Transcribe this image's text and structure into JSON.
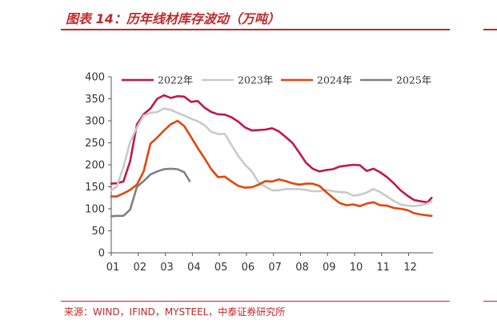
{
  "header": {
    "title": "图表 14：历年线材库存波动（万吨）"
  },
  "footer": {
    "source": "来源：WIND，IFIND，MYSTEEL，中泰证券研究所"
  },
  "colors": {
    "accent": "#c0282a"
  },
  "chart_data": {
    "type": "line",
    "title": "",
    "xlabel": "",
    "ylabel": "",
    "ylim": [
      0,
      400
    ],
    "xlim": [
      1,
      12.9
    ],
    "yticks": [
      "0",
      "50",
      "100",
      "150",
      "200",
      "250",
      "300",
      "350",
      "400"
    ],
    "xticks": [
      {
        "label": "01",
        "x": 1
      },
      {
        "label": "02",
        "x": 2
      },
      {
        "label": "03",
        "x": 3
      },
      {
        "label": "04",
        "x": 4
      },
      {
        "label": "05",
        "x": 5
      },
      {
        "label": "06",
        "x": 6
      },
      {
        "label": "07",
        "x": 7
      },
      {
        "label": "08",
        "x": 8
      },
      {
        "label": "09",
        "x": 9
      },
      {
        "label": "10",
        "x": 10
      },
      {
        "label": "11",
        "x": 11
      },
      {
        "label": "12",
        "x": 12
      }
    ],
    "legend_position": "top",
    "grid": false,
    "series": [
      {
        "name": "2022年",
        "color": "#c0174a",
        "x": [
          1.0,
          1.2,
          1.45,
          1.7,
          1.95,
          2.2,
          2.45,
          2.7,
          2.95,
          3.2,
          3.45,
          3.7,
          3.95,
          4.2,
          4.45,
          4.7,
          4.95,
          5.2,
          5.45,
          5.7,
          5.95,
          6.2,
          6.45,
          6.7,
          6.95,
          7.2,
          7.45,
          7.7,
          7.95,
          8.2,
          8.45,
          8.7,
          8.95,
          9.2,
          9.45,
          9.7,
          9.95,
          10.2,
          10.45,
          10.7,
          10.95,
          11.2,
          11.45,
          11.7,
          11.95,
          12.2,
          12.45,
          12.7,
          12.85
        ],
        "y": [
          157,
          158,
          162,
          208,
          292,
          315,
          328,
          350,
          358,
          352,
          356,
          355,
          343,
          345,
          330,
          320,
          315,
          314,
          308,
          298,
          285,
          278,
          279,
          280,
          283,
          276,
          263,
          250,
          228,
          205,
          191,
          185,
          188,
          190,
          196,
          198,
          200,
          199,
          186,
          191,
          183,
          172,
          158,
          142,
          130,
          120,
          117,
          115,
          125
        ]
      },
      {
        "name": "2023年",
        "color": "#c9c9c9",
        "x": [
          1.0,
          1.2,
          1.45,
          1.7,
          1.95,
          2.2,
          2.45,
          2.7,
          2.95,
          3.2,
          3.45,
          3.7,
          3.95,
          4.2,
          4.45,
          4.7,
          4.95,
          5.2,
          5.45,
          5.7,
          5.95,
          6.2,
          6.45,
          6.7,
          6.95,
          7.2,
          7.45,
          7.7,
          7.95,
          8.2,
          8.45,
          8.7,
          8.95,
          9.2,
          9.45,
          9.7,
          9.95,
          10.2,
          10.45,
          10.7,
          10.95,
          11.2,
          11.45,
          11.7,
          11.95,
          12.2,
          12.45,
          12.7,
          12.85
        ],
        "y": [
          142,
          150,
          195,
          252,
          285,
          312,
          318,
          320,
          328,
          325,
          318,
          312,
          305,
          299,
          290,
          275,
          270,
          270,
          245,
          220,
          200,
          185,
          160,
          150,
          142,
          142,
          145,
          145,
          145,
          143,
          140,
          140,
          143,
          140,
          138,
          137,
          130,
          132,
          137,
          145,
          138,
          128,
          118,
          110,
          107,
          106,
          108,
          112,
          117
        ]
      },
      {
        "name": "2024年",
        "color": "#e2460c",
        "x": [
          1.0,
          1.2,
          1.45,
          1.7,
          1.95,
          2.2,
          2.45,
          2.7,
          2.95,
          3.2,
          3.45,
          3.7,
          3.95,
          4.2,
          4.45,
          4.7,
          4.95,
          5.2,
          5.45,
          5.7,
          5.95,
          6.2,
          6.45,
          6.7,
          6.95,
          7.2,
          7.45,
          7.7,
          7.95,
          8.2,
          8.45,
          8.7,
          8.95,
          9.2,
          9.45,
          9.7,
          9.95,
          10.2,
          10.45,
          10.7,
          10.95,
          11.2,
          11.45,
          11.7,
          11.95,
          12.2,
          12.45,
          12.7,
          12.85
        ],
        "y": [
          128,
          128,
          135,
          143,
          155,
          185,
          248,
          262,
          278,
          292,
          300,
          288,
          263,
          238,
          215,
          190,
          172,
          173,
          162,
          152,
          148,
          149,
          155,
          163,
          162,
          167,
          163,
          158,
          155,
          157,
          157,
          152,
          138,
          125,
          113,
          108,
          110,
          106,
          112,
          115,
          108,
          107,
          102,
          100,
          97,
          90,
          87,
          85,
          84
        ]
      },
      {
        "name": "2025年",
        "color": "#808080",
        "x": [
          1.0,
          1.2,
          1.45,
          1.7,
          1.95,
          2.2,
          2.45,
          2.7,
          2.95,
          3.2,
          3.45,
          3.7,
          3.9
        ],
        "y": [
          83,
          84,
          84,
          98,
          150,
          163,
          178,
          185,
          190,
          191,
          190,
          183,
          163
        ]
      }
    ]
  }
}
